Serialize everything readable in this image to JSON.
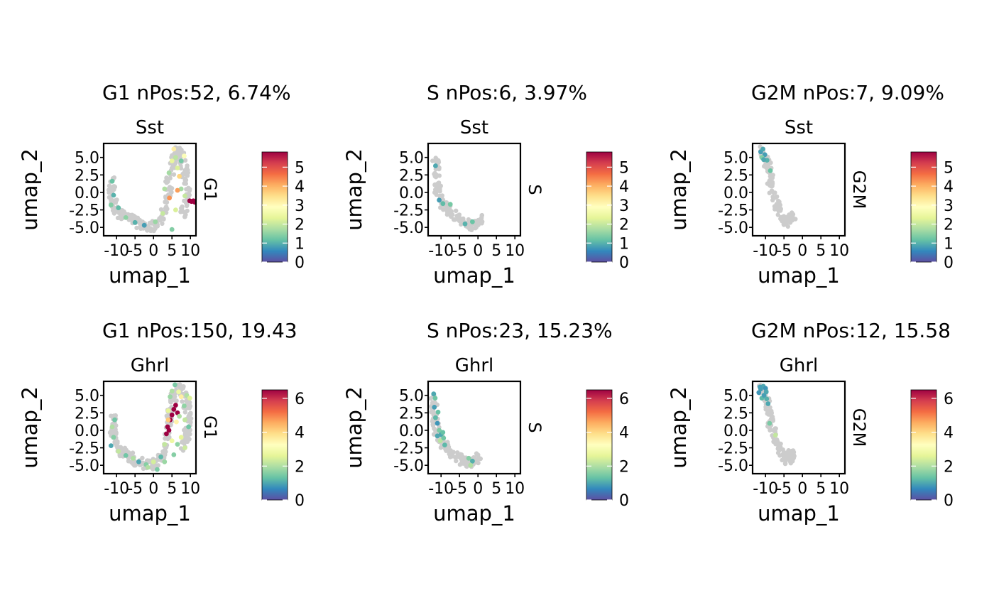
{
  "figure": {
    "background": "#ffffff",
    "point_color_negative": "#cccccc",
    "point_color_positive": "#3f88c5"
  },
  "colorscale": {
    "name": "Spectral (reversed)",
    "stops": [
      "#5e4fa2",
      "#3288bd",
      "#66c2a5",
      "#abdda4",
      "#e6f598",
      "#ffffbf",
      "#fee08b",
      "#fdae61",
      "#f46d43",
      "#d53e4f",
      "#9e0142"
    ]
  },
  "chart_data": [
    {
      "type": "scatter",
      "row": 0,
      "col": 0,
      "title": "G1 nPos:52, 6.74%",
      "subtitle": "Sst",
      "facet_label": "G1",
      "xlabel": "umap_1",
      "ylabel": "umap_2",
      "xticks": [
        "-10",
        "-5",
        "0",
        "5",
        "10"
      ],
      "yticks": [
        "-5.0",
        "-2.5",
        "0.0",
        "2.5",
        "5.0"
      ],
      "xlim": [
        -13.5,
        11.5
      ],
      "ylim": [
        -6.2,
        7.0
      ],
      "color_range": [
        0,
        5.8
      ],
      "cbar_ticks": [
        "0",
        "1",
        "2",
        "3",
        "4",
        "5"
      ],
      "background_path": [
        [
          -11,
          2
        ],
        [
          -11.5,
          0
        ],
        [
          -10.5,
          -2
        ],
        [
          -9,
          -3
        ],
        [
          -7,
          -3.5
        ],
        [
          -5,
          -4.2
        ],
        [
          -3,
          -4.8
        ],
        [
          -1,
          -5.0
        ],
        [
          1,
          -4.6
        ],
        [
          3,
          -3
        ],
        [
          4,
          0
        ],
        [
          4.3,
          2.5
        ],
        [
          5.5,
          4.5
        ],
        [
          6.5,
          6
        ],
        [
          7.5,
          5.5
        ],
        [
          8.5,
          3
        ],
        [
          9.2,
          1
        ],
        [
          8.5,
          -1.5
        ],
        [
          8,
          -3
        ]
      ],
      "positive_points": [
        [
          -11.2,
          1.6,
          1.2
        ],
        [
          -10.8,
          -0.4,
          1.0
        ],
        [
          -11.5,
          -1.8,
          1.4
        ],
        [
          -9.5,
          -2.2,
          1.1
        ],
        [
          -7.5,
          -3.6,
          1.5
        ],
        [
          -5,
          -4.3,
          1.0
        ],
        [
          -2.5,
          -4.7,
          0.8
        ],
        [
          0.5,
          -4.2,
          1.6
        ],
        [
          2.5,
          -3.0,
          2.0
        ],
        [
          3,
          0.5,
          1.8
        ],
        [
          4.2,
          2.8,
          1.7
        ],
        [
          5,
          4.5,
          2.4
        ],
        [
          5.5,
          6.2,
          3.2
        ],
        [
          6,
          5.0,
          1.9
        ],
        [
          6.5,
          3.5,
          2.2
        ],
        [
          7,
          2.3,
          3.6
        ],
        [
          7.5,
          4.5,
          1.3
        ],
        [
          8.3,
          5.2,
          2.8
        ],
        [
          7.5,
          0.5,
          1.7
        ],
        [
          6.5,
          0.3,
          4.2
        ],
        [
          8.5,
          -0.5,
          2.0
        ],
        [
          10.3,
          -1.3,
          5.8
        ],
        [
          10.8,
          -1.2,
          5.8
        ],
        [
          11.2,
          -1.4,
          5.8
        ],
        [
          9.8,
          -1.2,
          5.8
        ],
        [
          4.3,
          -0.8,
          4.3
        ],
        [
          6,
          -2.5,
          2.2
        ],
        [
          5,
          -5.3,
          1.4
        ]
      ]
    },
    {
      "type": "scatter",
      "row": 0,
      "col": 1,
      "title": "S nPos:6, 3.97%",
      "subtitle": "Sst",
      "facet_label": "S",
      "xlabel": "umap_1",
      "ylabel": "umap_2",
      "xticks": [
        "-10",
        "-5",
        "0",
        "5",
        "10"
      ],
      "yticks": [
        "-5.0",
        "-2.5",
        "0.0",
        "2.5",
        "5.0"
      ],
      "xlim": [
        -13.5,
        11.5
      ],
      "ylim": [
        -6.2,
        7.0
      ],
      "color_range": [
        0,
        5.8
      ],
      "cbar_ticks": [
        "0",
        "1",
        "2",
        "3",
        "4",
        "5"
      ],
      "background_path": [
        [
          -11.5,
          5
        ],
        [
          -11.3,
          3
        ],
        [
          -11,
          1
        ],
        [
          -10.5,
          -0.5
        ],
        [
          -9.5,
          -1.5
        ],
        [
          -8,
          -2.5
        ],
        [
          -6,
          -3.5
        ],
        [
          -4,
          -4.2
        ],
        [
          -2,
          -4.8
        ],
        [
          0,
          -4.6
        ],
        [
          0.5,
          -3.7
        ]
      ],
      "positive_points": [
        [
          -11.5,
          3.8,
          0.9
        ],
        [
          -10.5,
          -1.1,
          0.8
        ],
        [
          -9.5,
          -1.6,
          1.1
        ],
        [
          -7.5,
          -1.7,
          1.3
        ],
        [
          -3.5,
          -4.5,
          1.0
        ],
        [
          -1.5,
          -4.2,
          1.2
        ]
      ]
    },
    {
      "type": "scatter",
      "row": 0,
      "col": 2,
      "title": "G2M nPos:7, 9.09%",
      "subtitle": "Sst",
      "facet_label": "G2M",
      "xlabel": "umap_1",
      "ylabel": "umap_2",
      "xticks": [
        "-10",
        "-5",
        "0",
        "5",
        "10"
      ],
      "yticks": [
        "-5.0",
        "-2.5",
        "0.0",
        "2.5",
        "5.0"
      ],
      "xlim": [
        -13.5,
        11.5
      ],
      "ylim": [
        -6.2,
        7.0
      ],
      "color_range": [
        0,
        5.8
      ],
      "cbar_ticks": [
        "0",
        "1",
        "2",
        "3",
        "4",
        "5"
      ],
      "background_path": [
        [
          -11.5,
          6
        ],
        [
          -10.5,
          5.5
        ],
        [
          -9.5,
          4
        ],
        [
          -9,
          2.5
        ],
        [
          -8.5,
          1.0
        ],
        [
          -7,
          -1.5
        ],
        [
          -5.5,
          -3.5
        ],
        [
          -4.5,
          -4.3
        ],
        [
          -3,
          -3.5
        ],
        [
          -2.5,
          -3.7
        ]
      ],
      "positive_points": [
        [
          -11.3,
          5.8,
          0.8
        ],
        [
          -10.7,
          6.2,
          0.9
        ],
        [
          -10.2,
          5.4,
          0.8
        ],
        [
          -11.0,
          5.0,
          1.4
        ],
        [
          -9.6,
          4.6,
          1.0
        ],
        [
          -8.7,
          3.1,
          1.2
        ],
        [
          -10.5,
          4.7,
          0.9
        ]
      ]
    },
    {
      "type": "scatter",
      "row": 1,
      "col": 0,
      "title": "G1 nPos:150, 19.43",
      "subtitle": "Ghrl",
      "facet_label": "G1",
      "xlabel": "umap_1",
      "ylabel": "umap_2",
      "xticks": [
        "-10",
        "-5",
        "0",
        "5",
        "10"
      ],
      "yticks": [
        "-5.0",
        "-2.5",
        "0.0",
        "2.5",
        "5.0"
      ],
      "xlim": [
        -13.5,
        11.5
      ],
      "ylim": [
        -6.2,
        7.0
      ],
      "color_range": [
        0,
        6.5
      ],
      "cbar_ticks": [
        "0",
        "2",
        "4",
        "6"
      ],
      "background_path": [
        [
          -10.5,
          2
        ],
        [
          -11,
          0
        ],
        [
          -10.5,
          -2
        ],
        [
          -9,
          -3
        ],
        [
          -7,
          -3.6
        ],
        [
          -5,
          -4.3
        ],
        [
          -3,
          -4.8
        ],
        [
          -1,
          -5.0
        ],
        [
          1,
          -4.6
        ],
        [
          3,
          -3
        ],
        [
          4,
          0
        ],
        [
          4.3,
          2.5
        ],
        [
          5.5,
          4.5
        ],
        [
          6.5,
          6
        ],
        [
          8,
          5.5
        ],
        [
          9,
          4
        ],
        [
          9.5,
          2
        ],
        [
          9,
          -0.5
        ],
        [
          8,
          -2.5
        ]
      ],
      "positive_points": [
        [
          -10.5,
          1.5,
          1.4
        ],
        [
          -11.2,
          0.5,
          2.0
        ],
        [
          -10.8,
          -1.0,
          1.6
        ],
        [
          -11.5,
          -2.2,
          1.0
        ],
        [
          -9.5,
          -3.0,
          2.2
        ],
        [
          -7.5,
          -3.6,
          1.4
        ],
        [
          -5.5,
          -4.0,
          2.0
        ],
        [
          -4,
          -4.5,
          1.0
        ],
        [
          -2,
          -4.9,
          1.6
        ],
        [
          0,
          -4.5,
          2.4
        ],
        [
          2,
          -3.8,
          1.2
        ],
        [
          3,
          -2.0,
          2.2
        ],
        [
          3.5,
          -0.5,
          6.5
        ],
        [
          3.8,
          0.5,
          6.5
        ],
        [
          4.2,
          0.0,
          6.5
        ],
        [
          4.5,
          1.5,
          6.5
        ],
        [
          5,
          2.2,
          6.5
        ],
        [
          5.5,
          3.0,
          6.5
        ],
        [
          6,
          3.6,
          6.5
        ],
        [
          6.5,
          2.5,
          6.5
        ],
        [
          4,
          2.8,
          2.6
        ],
        [
          4.5,
          4.8,
          1.8
        ],
        [
          5,
          5.6,
          2.0
        ],
        [
          5.8,
          6.5,
          1.5
        ],
        [
          6.8,
          5.5,
          2.8
        ],
        [
          7.5,
          4.8,
          3.6
        ],
        [
          8.3,
          3.5,
          1.7
        ],
        [
          9,
          5.0,
          2.0
        ],
        [
          9.8,
          4.6,
          2.5
        ],
        [
          8.5,
          1.5,
          2.2
        ],
        [
          9.5,
          0.5,
          1.4
        ],
        [
          7.5,
          -1.0,
          2.6
        ],
        [
          6.5,
          -2.0,
          1.7
        ],
        [
          8.5,
          -2.5,
          2.3
        ],
        [
          5.5,
          -3.5,
          1.6
        ],
        [
          4,
          1.5,
          4.2
        ],
        [
          6.2,
          1.2,
          3.5
        ],
        [
          7,
          2.0,
          2.0
        ],
        [
          5,
          -1.5,
          2.8
        ],
        [
          3,
          -4.5,
          1.8
        ],
        [
          1,
          -5.6,
          1.5
        ],
        [
          -1.5,
          -5.3,
          2.0
        ]
      ]
    },
    {
      "type": "scatter",
      "row": 1,
      "col": 1,
      "title": "S nPos:23, 15.23%",
      "subtitle": "Ghrl",
      "facet_label": "S",
      "xlabel": "umap_1",
      "ylabel": "umap_2",
      "xticks": [
        "-10",
        "-5",
        "0",
        "5",
        "10"
      ],
      "yticks": [
        "-5.0",
        "-2.5",
        "0.0",
        "2.5",
        "5.0"
      ],
      "xlim": [
        -13.5,
        11.5
      ],
      "ylim": [
        -6.2,
        7.0
      ],
      "color_range": [
        0,
        6.5
      ],
      "cbar_ticks": [
        "0",
        "2",
        "4",
        "6"
      ],
      "background_path": [
        [
          -12,
          5
        ],
        [
          -11.8,
          3
        ],
        [
          -11.5,
          1
        ],
        [
          -11,
          -0.5
        ],
        [
          -10,
          -1.5
        ],
        [
          -8.5,
          -2.5
        ],
        [
          -6.5,
          -3.5
        ],
        [
          -4.5,
          -4.2
        ],
        [
          -2.5,
          -4.7
        ],
        [
          -0.5,
          -4.6
        ],
        [
          0.5,
          -3.7
        ]
      ],
      "positive_points": [
        [
          -12.0,
          5.2,
          1.0
        ],
        [
          -11.6,
          4.6,
          1.4
        ],
        [
          -11.8,
          3.3,
          0.9
        ],
        [
          -11.5,
          1.8,
          1.2
        ],
        [
          -11.0,
          1.0,
          0.8
        ],
        [
          -10.5,
          0.0,
          1.5
        ],
        [
          -10.0,
          -0.6,
          1.0
        ],
        [
          -9.5,
          -0.3,
          1.3
        ],
        [
          -10.2,
          -1.5,
          2.1
        ],
        [
          -9.0,
          -2.1,
          1.2
        ],
        [
          -11.0,
          -0.8,
          1.0
        ],
        [
          -2.5,
          -4.0,
          1.6
        ],
        [
          -1.5,
          -4.4,
          1.1
        ],
        [
          -2.0,
          -5.0,
          2.0
        ],
        [
          -10.8,
          2.6,
          1.3
        ],
        [
          -9.3,
          -1.1,
          1.4
        ]
      ]
    },
    {
      "type": "scatter",
      "row": 1,
      "col": 2,
      "title": "G2M nPos:12, 15.58",
      "subtitle": "Ghrl",
      "facet_label": "G2M",
      "xlabel": "umap_1",
      "ylabel": "umap_2",
      "xticks": [
        "-10",
        "-5",
        "0",
        "5",
        "10"
      ],
      "yticks": [
        "-5.0",
        "-2.5",
        "0.0",
        "2.5",
        "5.0"
      ],
      "xlim": [
        -13.5,
        11.5
      ],
      "ylim": [
        -6.2,
        7.0
      ],
      "color_range": [
        0,
        6.5
      ],
      "cbar_ticks": [
        "0",
        "2",
        "4",
        "6"
      ],
      "background_path": [
        [
          -11.5,
          6
        ],
        [
          -10.5,
          5.5
        ],
        [
          -9.5,
          4
        ],
        [
          -9,
          2.5
        ],
        [
          -8.5,
          1.0
        ],
        [
          -7,
          -1.5
        ],
        [
          -5.5,
          -3.5
        ],
        [
          -4.5,
          -4.3
        ],
        [
          -3,
          -3.5
        ],
        [
          -2.5,
          -3.7
        ]
      ],
      "positive_points": [
        [
          -11.3,
          5.9,
          0.9
        ],
        [
          -10.6,
          6.3,
          1.0
        ],
        [
          -11.8,
          5.4,
          0.8
        ],
        [
          -11.0,
          4.6,
          1.2
        ],
        [
          -10.4,
          5.0,
          0.9
        ],
        [
          -9.7,
          4.5,
          1.1
        ],
        [
          -9.3,
          3.8,
          1.0
        ],
        [
          -10.0,
          6.0,
          0.8
        ],
        [
          -8.9,
          1.0,
          1.5
        ],
        [
          -7.3,
          -0.7,
          2.2
        ],
        [
          -11.5,
          6.2,
          0.9
        ],
        [
          -9.8,
          5.5,
          1.0
        ]
      ]
    }
  ]
}
